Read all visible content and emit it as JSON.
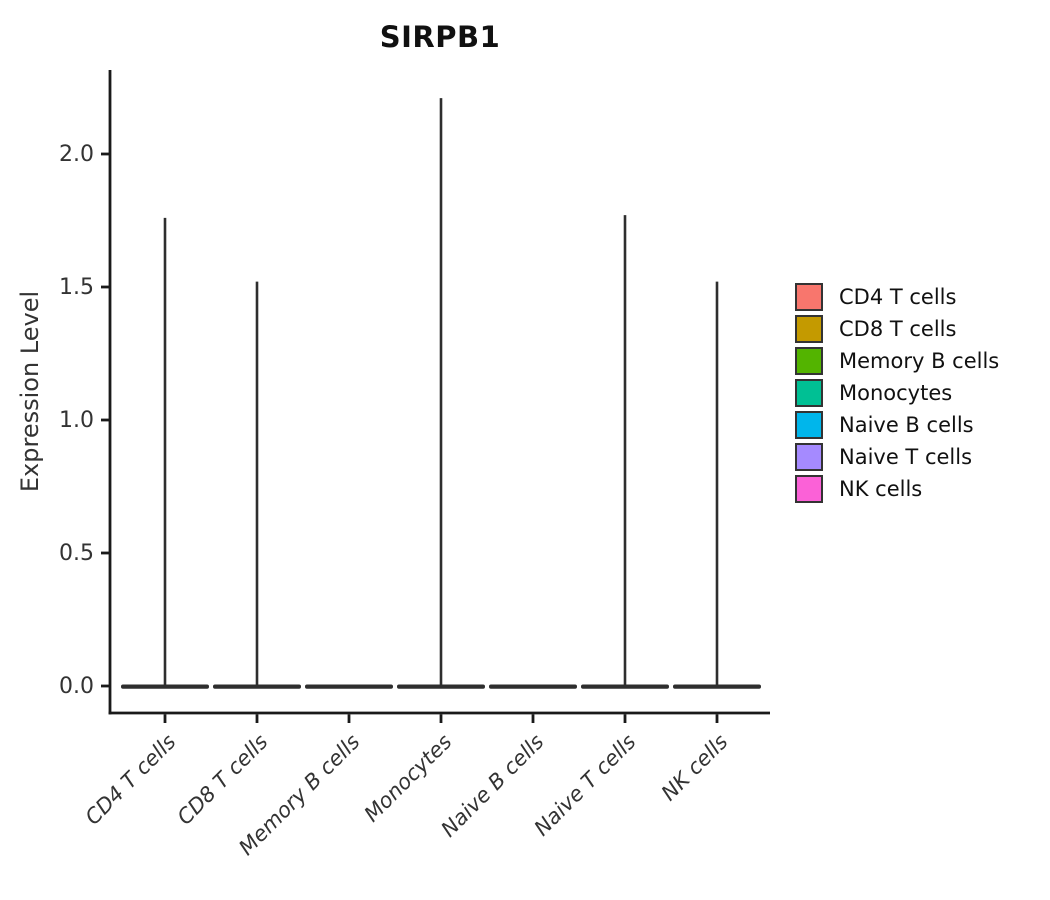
{
  "figure": {
    "title": "SIRPB1"
  },
  "chart_data": {
    "type": "violin",
    "title": "SIRPB1",
    "xlabel": "",
    "ylabel": "Expression Level",
    "categories": [
      "CD4 T cells",
      "CD8 T cells",
      "Memory B cells",
      "Monocytes",
      "Naive B cells",
      "Naive T cells",
      "NK cells"
    ],
    "series": [
      {
        "name": "max expression (spike top)",
        "values": [
          1.76,
          1.52,
          0,
          2.21,
          0,
          1.77,
          1.52
        ]
      }
    ],
    "violin_shape": "collapsed at zero with thin central spike to max value",
    "y_ticks": [
      "0.0",
      "0.5",
      "1.0",
      "1.5",
      "2.0"
    ],
    "y_tick_values": [
      0.0,
      0.5,
      1.0,
      1.5,
      2.0
    ],
    "ylim": [
      0,
      2.32
    ],
    "grid": "off",
    "legend_position": "right",
    "legend": [
      {
        "label": "CD4 T cells",
        "color": "#F8766D"
      },
      {
        "label": "CD8 T cells",
        "color": "#C49A00"
      },
      {
        "label": "Memory B cells",
        "color": "#53B400"
      },
      {
        "label": "Monocytes",
        "color": "#00C094"
      },
      {
        "label": "Naive B cells",
        "color": "#00B6EB"
      },
      {
        "label": "Naive T cells",
        "color": "#A58AFF"
      },
      {
        "label": "NK cells",
        "color": "#FB61D7"
      }
    ],
    "axis_color": "#1a1a1a",
    "violin_outline_color": "#2e2e2e",
    "tick_label_color": "#333333"
  }
}
